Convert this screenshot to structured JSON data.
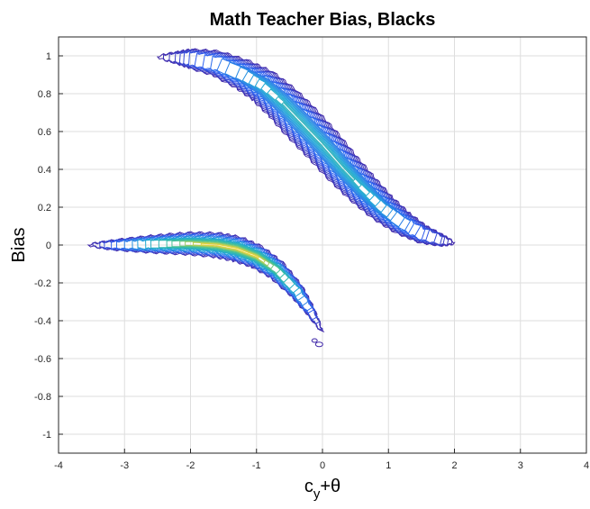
{
  "chart_data": {
    "type": "contour",
    "title": "Math Teacher Bias, Blacks",
    "xlabel": {
      "main": "c",
      "subscript": "y",
      "suffix": "+θ"
    },
    "ylabel": "Bias",
    "xlim": [
      -4,
      4
    ],
    "ylim": [
      -1.1,
      1.1
    ],
    "xticks": [
      -4,
      -3,
      -2,
      -1,
      0,
      1,
      2,
      3,
      4
    ],
    "yticks": [
      -1,
      -0.8,
      -0.6,
      -0.4,
      -0.2,
      0,
      0.2,
      0.4,
      0.6,
      0.8,
      1
    ],
    "grid": true,
    "colormap": [
      "#3e26a8",
      "#2e5ff2",
      "#1ea6d8",
      "#3dc09a",
      "#e5d23a"
    ],
    "upper_ridge": {
      "x": [
        -2.5,
        -2.2,
        -2.0,
        -1.6,
        -1.2,
        -0.9,
        -0.6,
        -0.3,
        0.0,
        0.3,
        0.6,
        0.9,
        1.2,
        1.5,
        1.8,
        2.0
      ],
      "y": [
        0.995,
        0.99,
        0.985,
        0.96,
        0.9,
        0.84,
        0.75,
        0.64,
        0.53,
        0.41,
        0.3,
        0.2,
        0.12,
        0.06,
        0.025,
        0.01
      ]
    },
    "lower_ridge": {
      "x": [
        -3.55,
        -3.2,
        -2.8,
        -2.4,
        -2.0,
        -1.6,
        -1.3,
        -1.0,
        -0.7,
        -0.4,
        -0.2,
        0.0
      ],
      "y": [
        0.0,
        0.0,
        0.003,
        0.006,
        0.008,
        0.0,
        -0.02,
        -0.06,
        -0.13,
        -0.24,
        -0.34,
        -0.46
      ]
    }
  }
}
